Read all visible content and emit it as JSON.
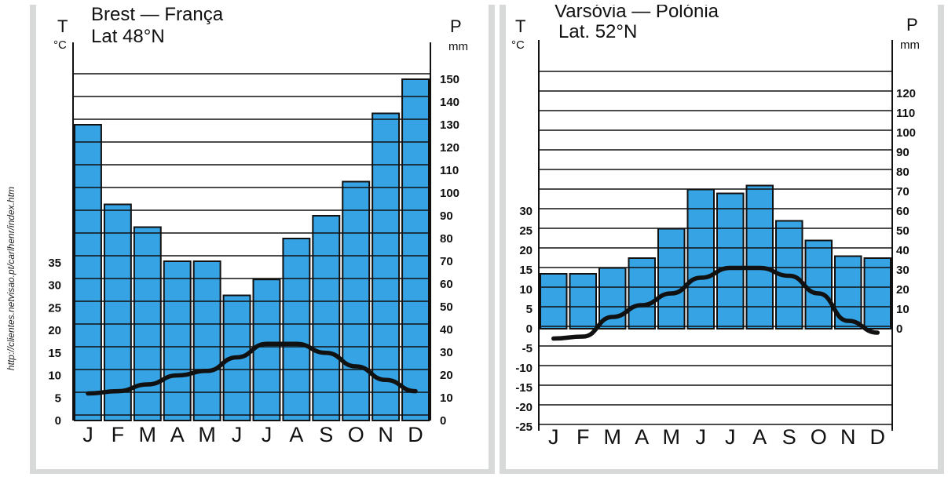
{
  "source_url": "http://clientes.netvisao.pt/carlhenr/index.htm",
  "chart_data": [
    {
      "type": "bar",
      "title": "Brest — França",
      "subtitle": "Lat 48°N",
      "left_axis": {
        "symbol": "T",
        "unit": "°C",
        "ticks": [
          0,
          5,
          10,
          15,
          20,
          25,
          30,
          35
        ]
      },
      "right_axis": {
        "symbol": "P",
        "unit": "mm",
        "ticks": [
          0,
          10,
          20,
          30,
          40,
          50,
          60,
          70,
          80,
          90,
          100,
          110,
          120,
          130,
          140,
          150
        ]
      },
      "categories": [
        "J",
        "F",
        "M",
        "A",
        "M",
        "J",
        "J",
        "A",
        "S",
        "O",
        "N",
        "D"
      ],
      "series": [
        {
          "name": "P",
          "kind": "bar",
          "axis": "right",
          "values": [
            130,
            95,
            85,
            70,
            70,
            55,
            62,
            80,
            90,
            105,
            135,
            150
          ]
        },
        {
          "name": "T",
          "kind": "line",
          "axis": "left",
          "values": [
            6,
            6.5,
            8,
            10,
            11,
            14,
            17,
            17,
            15,
            12,
            9,
            6.5
          ]
        }
      ],
      "ylim_left": [
        0,
        35
      ],
      "ylim_right": [
        0,
        150
      ],
      "grid": true,
      "bar_color": "#35a3e4",
      "line_color": "#111111"
    },
    {
      "type": "bar",
      "title": "Varsóvia — Polónia",
      "subtitle": "Lat. 52°N",
      "left_axis": {
        "symbol": "T",
        "unit": "°C",
        "ticks": [
          -25,
          -20,
          -15,
          -10,
          -5,
          0,
          5,
          10,
          15,
          20,
          25,
          30
        ]
      },
      "right_axis": {
        "symbol": "P",
        "unit": "mm",
        "ticks": [
          0,
          10,
          20,
          30,
          40,
          50,
          60,
          70,
          80,
          90,
          100,
          110,
          120
        ]
      },
      "categories": [
        "J",
        "F",
        "M",
        "A",
        "M",
        "J",
        "J",
        "A",
        "S",
        "O",
        "N",
        "D"
      ],
      "series": [
        {
          "name": "P",
          "kind": "bar",
          "axis": "right",
          "values": [
            28,
            28,
            31,
            36,
            51,
            71,
            69,
            73,
            55,
            45,
            37,
            36
          ]
        },
        {
          "name": "T",
          "kind": "line",
          "axis": "left",
          "values": [
            -2.5,
            -2,
            3,
            6,
            9,
            13,
            15.5,
            15.5,
            13.5,
            9,
            2,
            -1
          ]
        }
      ],
      "grid": true,
      "bar_color": "#35a3e4",
      "line_color": "#111111"
    }
  ]
}
